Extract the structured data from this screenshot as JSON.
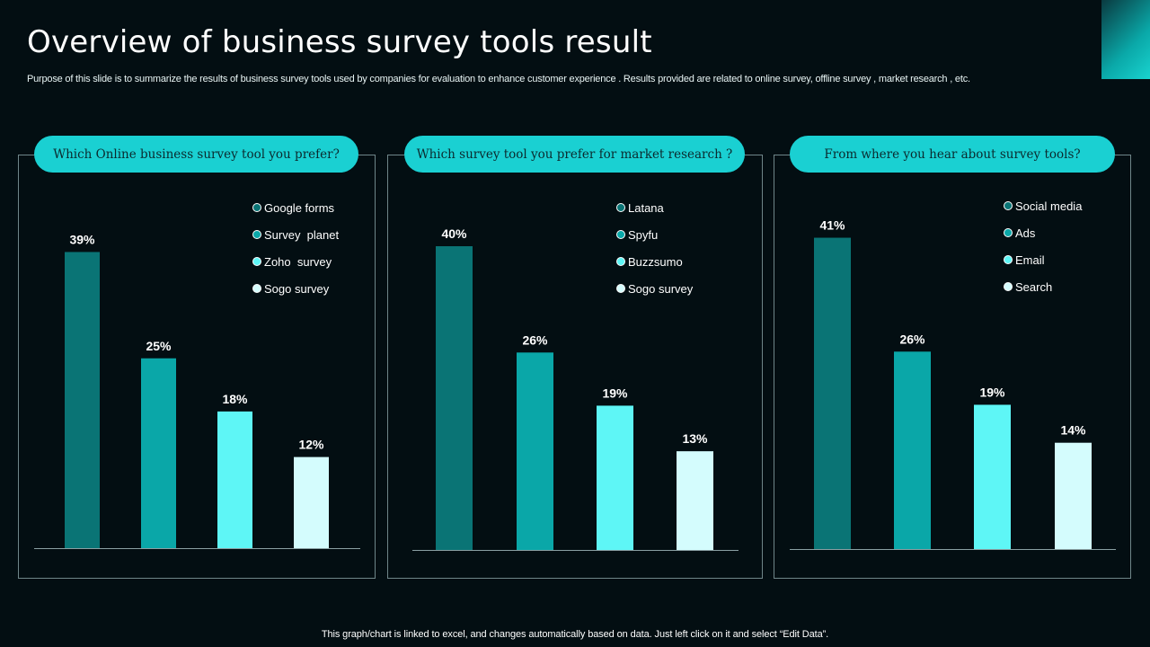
{
  "page": {
    "title": "Overview of business survey tools result",
    "subtitle": "Purpose of this slide is to summarize the results of  business  survey tools used by companies for evaluation to enhance customer experience . Results provided are related to online  survey,  offline survey , market research , etc.",
    "footer": "This graph/chart is linked to excel,  and changes automatically based on data. Just left click on it and select “Edit Data”."
  },
  "colors": {
    "background": "#030e12",
    "pill": "#1ad0d2",
    "series": [
      "#0a7475",
      "#0aa7a8",
      "#5ef6f6",
      "#d4fcfd"
    ]
  },
  "chart_data": [
    {
      "type": "bar",
      "title": "Which Online business survey tool you prefer?",
      "categories": [
        "Google forms",
        "Survey  planet",
        "Zoho  survey",
        "Sogo survey"
      ],
      "values": [
        39,
        25,
        18,
        12
      ],
      "labels": [
        "39%",
        "25%",
        "18%",
        "12%"
      ],
      "unit": "%",
      "ylim": [
        0,
        40
      ],
      "legend": "top-right",
      "grid": false
    },
    {
      "type": "bar",
      "title": "Which survey tool you prefer for market research ?",
      "categories": [
        "Latana",
        "Spyfu",
        "Buzzsumo",
        "Sogo survey"
      ],
      "values": [
        40,
        26,
        19,
        13
      ],
      "labels": [
        "40%",
        "26%",
        "19%",
        "13%"
      ],
      "unit": "%",
      "ylim": [
        0,
        40
      ],
      "legend": "top-right",
      "grid": false
    },
    {
      "type": "bar",
      "title": "From where you hear about survey tools?",
      "categories": [
        "Social media",
        "Ads",
        "Email",
        "Search"
      ],
      "values": [
        41,
        26,
        19,
        14
      ],
      "labels": [
        "41%",
        "26%",
        "19%",
        "14%"
      ],
      "unit": "%",
      "ylim": [
        0,
        40
      ],
      "legend": "top-right",
      "grid": false
    }
  ]
}
